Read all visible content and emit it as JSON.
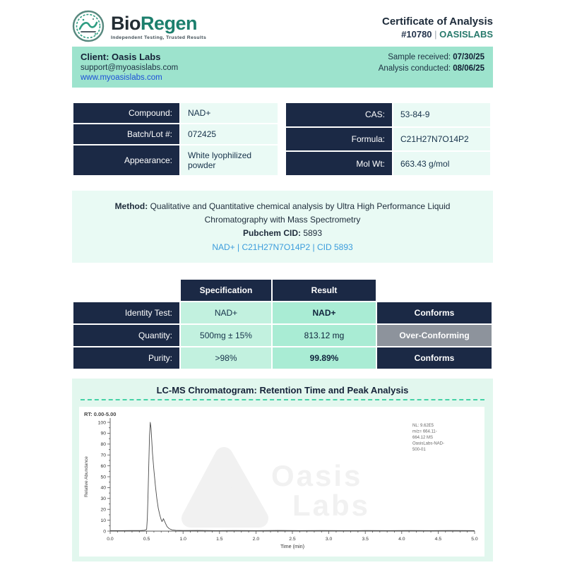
{
  "icons": {
    "brand_logo": "bioregen-circular-swirl-logo",
    "watermark_logo": "oasis-labs-rounded-triangle-logo"
  },
  "colors": {
    "navy": "#1b2945",
    "mint_bar": "#9de3cd",
    "cell_light": "#eafaf5",
    "spec_cell": "#c2f1df",
    "result_cell": "#a9ecd4",
    "status_gray": "#8d939c",
    "teal_accent": "#27796b",
    "dashed_teal": "#45d2a5",
    "link_blue": "#1d4fd8",
    "method_link_blue": "#3b9cdc"
  },
  "header": {
    "brand_bio": "Bio",
    "brand_regen": "Regen",
    "tagline": "Independent Testing, Trusted Results",
    "cert_title": "Certificate of Analysis",
    "cert_number": "#10780",
    "cert_sep": " | ",
    "cert_lab": "OASISLABS"
  },
  "client": {
    "name_line": "Client: Oasis Labs",
    "email": "support@myoasislabs.com",
    "website": "www.myoasislabs.com",
    "received_label": "Sample received: ",
    "received_date": "07/30/25",
    "conducted_label": "Analysis conducted: ",
    "conducted_date": "08/06/25"
  },
  "compound": {
    "left": [
      {
        "label": "Compound:",
        "value": "NAD+"
      },
      {
        "label": "Batch/Lot #:",
        "value": "072425"
      },
      {
        "label": "Appearance:",
        "value": "White lyophilized powder"
      }
    ],
    "right": [
      {
        "label": "CAS:",
        "value": "53-84-9"
      },
      {
        "label": "Formula:",
        "value": "C21H27N7O14P2"
      },
      {
        "label": "Mol Wt:",
        "value": "663.43 g/mol"
      }
    ]
  },
  "method": {
    "label": "Method: ",
    "text": "Qualitative and Quantitative chemical analysis by Ultra High Performance Liquid Chromatography with Mass Spectrometry",
    "cid_label": "Pubchem CID: ",
    "cid_value": "5893",
    "link": "NAD+ | C21H27N7O14P2 | CID 5893"
  },
  "results": {
    "col_spec": "Specification",
    "col_result": "Result",
    "rows": [
      {
        "label": "Identity Test:",
        "spec": "NAD+",
        "result": "NAD+",
        "status": "Conforms"
      },
      {
        "label": "Quantity:",
        "spec": "500mg ± 15%",
        "result": "813.12 mg",
        "status": "Over-Conforming"
      },
      {
        "label": "Purity:",
        "spec": ">98%",
        "result": "99.89%",
        "status": "Conforms"
      }
    ]
  },
  "chromatogram": {
    "section_title": "LC-MS Chromatogram: Retention Time and Peak Analysis"
  },
  "chart_data": {
    "type": "line",
    "title": "LC-MS Chromatogram: Retention Time and Peak Analysis",
    "rt_label": "RT: 0.00-5.00",
    "xlabel": "Time (min)",
    "ylabel": "Relative Abundance",
    "xlim": [
      0,
      5
    ],
    "ylim": [
      0,
      100
    ],
    "x_tick_labels": [
      "0.0",
      "0.5",
      "1.0",
      "1.5",
      "2.0",
      "2.5",
      "3.0",
      "3.5",
      "4.0",
      "4.5",
      "5.0"
    ],
    "y_ticks": [
      0,
      10,
      20,
      30,
      40,
      50,
      60,
      70,
      80,
      90,
      100
    ],
    "grid": false,
    "legend": "none",
    "annotation_lines": [
      "NL: 9.62E5",
      "m/z= 664.11-",
      "664.12 MS",
      "OasisLabs-NAD-",
      "500-01"
    ],
    "watermark_line1": "Oasis",
    "watermark_line2": "Labs",
    "peak_retention_time_min": 0.55,
    "peak_relative_abundance": 100,
    "secondary_bump_time_min": 0.73,
    "secondary_bump_abundance": 11.5,
    "points": [
      [
        0.0,
        0.4
      ],
      [
        0.15,
        0.4
      ],
      [
        0.3,
        0.5
      ],
      [
        0.42,
        0.5
      ],
      [
        0.47,
        0.8
      ],
      [
        0.5,
        1.5
      ],
      [
        0.51,
        12
      ],
      [
        0.52,
        35
      ],
      [
        0.53,
        62
      ],
      [
        0.54,
        88
      ],
      [
        0.55,
        100
      ],
      [
        0.56,
        95
      ],
      [
        0.57,
        84
      ],
      [
        0.58,
        72
      ],
      [
        0.6,
        56
      ],
      [
        0.62,
        42
      ],
      [
        0.64,
        30
      ],
      [
        0.66,
        21
      ],
      [
        0.68,
        15
      ],
      [
        0.7,
        10.5
      ],
      [
        0.71,
        8.8
      ],
      [
        0.72,
        9.5
      ],
      [
        0.73,
        11.5
      ],
      [
        0.74,
        10
      ],
      [
        0.76,
        7
      ],
      [
        0.78,
        4.2
      ],
      [
        0.81,
        2.2
      ],
      [
        0.85,
        1.1
      ],
      [
        0.9,
        0.7
      ],
      [
        1.0,
        0.5
      ],
      [
        1.2,
        0.6
      ],
      [
        1.45,
        0.4
      ],
      [
        1.7,
        0.5
      ],
      [
        2.0,
        0.4
      ],
      [
        2.3,
        0.6
      ],
      [
        2.6,
        0.4
      ],
      [
        2.9,
        0.5
      ],
      [
        3.2,
        0.4
      ],
      [
        3.5,
        0.5
      ],
      [
        3.8,
        0.4
      ],
      [
        4.1,
        0.5
      ],
      [
        4.4,
        0.4
      ],
      [
        4.7,
        0.5
      ],
      [
        5.0,
        0.4
      ]
    ]
  }
}
